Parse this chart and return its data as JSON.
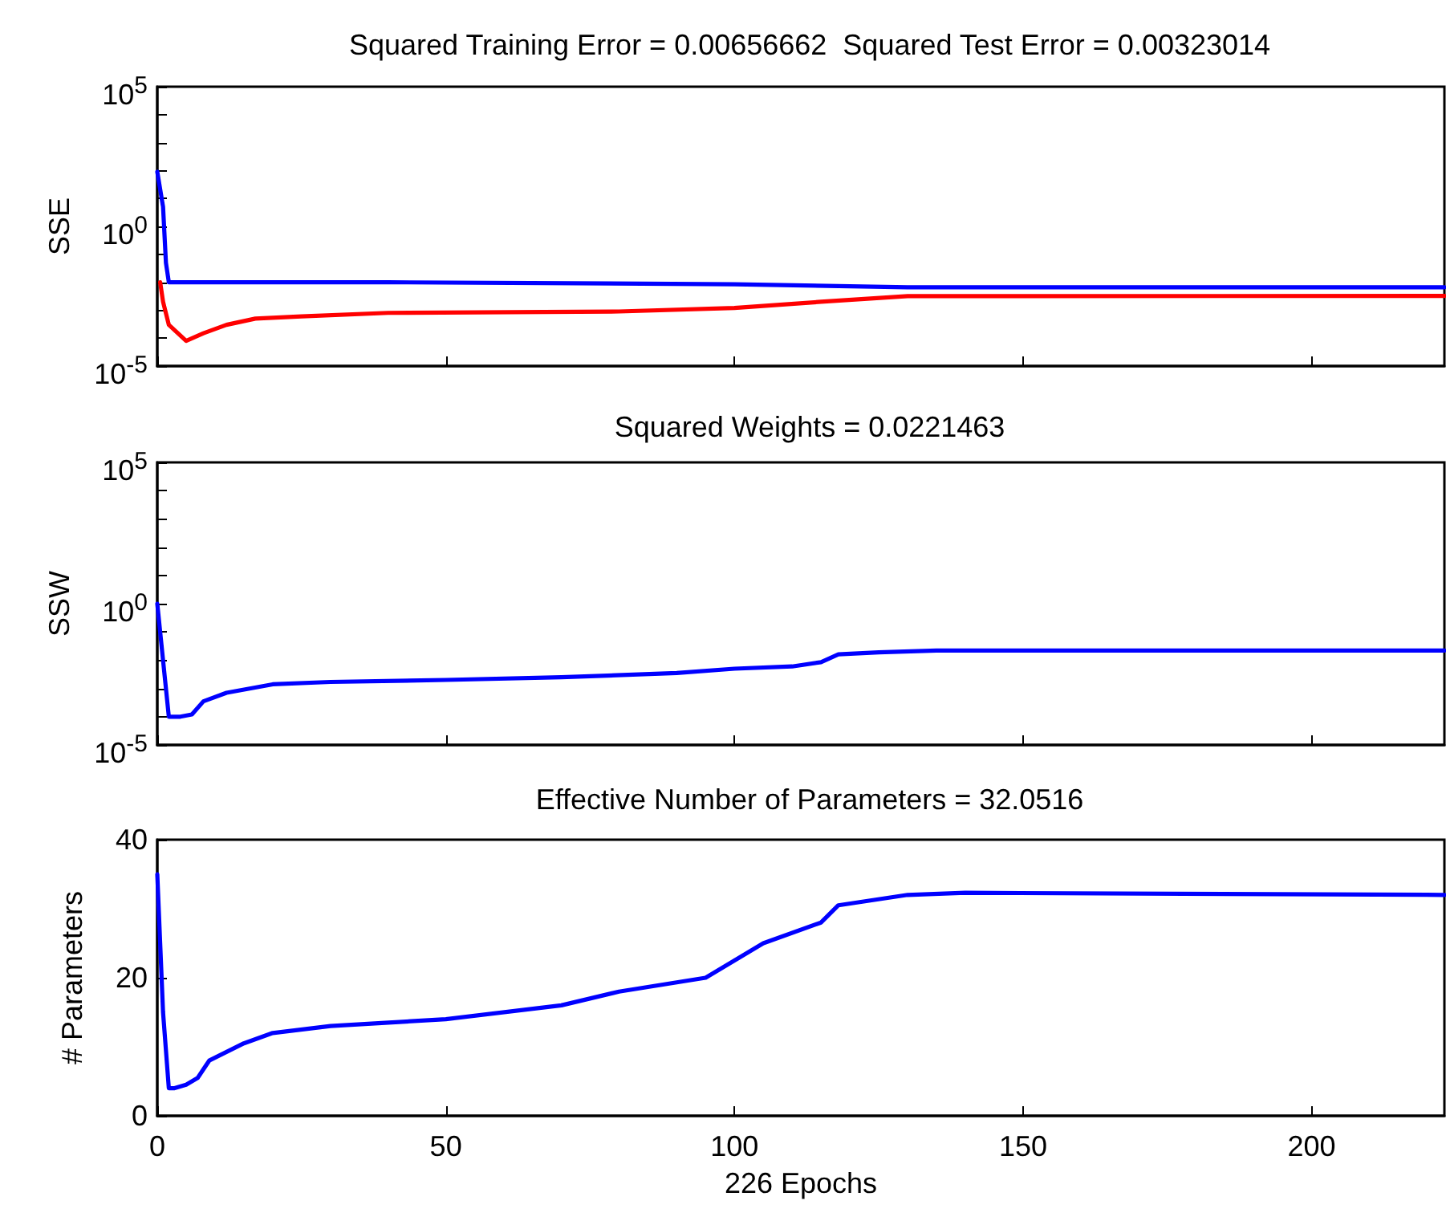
{
  "chart_data": [
    {
      "type": "line",
      "title": "Squared Training Error = 0.00656662  Squared Test Error = 0.00323014",
      "ylabel": "SSE",
      "log": "y",
      "tick_labels": "y",
      "xlim": [
        0,
        223
      ],
      "xticks": [
        0,
        50,
        100,
        150,
        200
      ],
      "ylim": [
        1e-05,
        100000
      ],
      "yticks": [
        {
          "value": 1e-05,
          "label": "10$^{-5}$"
        },
        {
          "value": 0.0001,
          "label": null
        },
        {
          "value": 0.001,
          "label": null
        },
        {
          "value": 0.01,
          "label": null
        },
        {
          "value": 0.1,
          "label": null
        },
        {
          "value": 1,
          "label": "10$^{0}$"
        },
        {
          "value": 10,
          "label": null
        },
        {
          "value": 100,
          "label": null
        },
        {
          "value": 1000,
          "label": null
        },
        {
          "value": 10000,
          "label": null
        },
        {
          "value": 100000,
          "label": "10$^{5}$"
        }
      ],
      "series": [
        {
          "color": "#0000ff",
          "x": [
            0,
            1,
            1.5,
            2,
            3,
            10,
            40,
            100,
            130,
            223
          ],
          "values": [
            90,
            5,
            0.05,
            0.01,
            0.01,
            0.01,
            0.01,
            0.0085,
            0.0066,
            0.0066
          ]
        },
        {
          "color": "#ff0000",
          "x": [
            0.5,
            1,
            2,
            5,
            8,
            12,
            17,
            25,
            40,
            80,
            100,
            115,
            130,
            223
          ],
          "values": [
            0.01,
            0.002,
            0.0003,
            8e-05,
            0.00015,
            0.0003,
            0.0005,
            0.0006,
            0.0008,
            0.0009,
            0.0012,
            0.002,
            0.0032,
            0.00323
          ]
        }
      ]
    },
    {
      "type": "line",
      "title": "Squared Weights = 0.0221463",
      "ylabel": "SSW",
      "log": "y",
      "tick_labels": "y",
      "xlim": [
        0,
        223
      ],
      "xticks": [
        0,
        50,
        100,
        150,
        200
      ],
      "ylim": [
        1e-05,
        100000
      ],
      "yticks": [
        {
          "value": 1e-05,
          "label": "10$^{-5}$"
        },
        {
          "value": 0.0001,
          "label": null
        },
        {
          "value": 0.001,
          "label": null
        },
        {
          "value": 0.01,
          "label": null
        },
        {
          "value": 0.1,
          "label": null
        },
        {
          "value": 1,
          "label": "10$^{0}$"
        },
        {
          "value": 10,
          "label": null
        },
        {
          "value": 100,
          "label": null
        },
        {
          "value": 1000,
          "label": null
        },
        {
          "value": 10000,
          "label": null
        },
        {
          "value": 100000,
          "label": "10$^{5}$"
        }
      ],
      "series": [
        {
          "color": "#0000ff",
          "x": [
            0,
            1,
            2,
            4,
            6,
            8,
            12,
            20,
            30,
            50,
            70,
            90,
            100,
            110,
            115,
            118,
            125,
            135,
            223
          ],
          "values": [
            1,
            0.01,
            0.0001,
            0.0001,
            0.00012,
            0.00035,
            0.0007,
            0.0014,
            0.0017,
            0.002,
            0.0025,
            0.0035,
            0.005,
            0.006,
            0.0085,
            0.016,
            0.019,
            0.0221,
            0.0221
          ]
        }
      ]
    },
    {
      "type": "line",
      "title": "Effective Number of Parameters = 32.0516",
      "xlabel": "226 Epochs",
      "ylabel": "# Parameters",
      "xlim": [
        0,
        223
      ],
      "xticks": [
        0,
        50,
        100,
        150,
        200
      ],
      "ylim": [
        0,
        40
      ],
      "yticks": [
        0,
        20,
        40
      ],
      "series": [
        {
          "color": "#0000ff",
          "x": [
            0,
            1,
            2,
            3,
            5,
            7,
            9,
            15,
            20,
            30,
            50,
            70,
            80,
            95,
            100,
            105,
            115,
            118,
            130,
            140,
            223
          ],
          "values": [
            35,
            15,
            4,
            4,
            4.5,
            5.5,
            8,
            10.5,
            12,
            13,
            14,
            16,
            18,
            20,
            22.5,
            25,
            28,
            30.5,
            32,
            32.3,
            32
          ]
        }
      ]
    }
  ]
}
